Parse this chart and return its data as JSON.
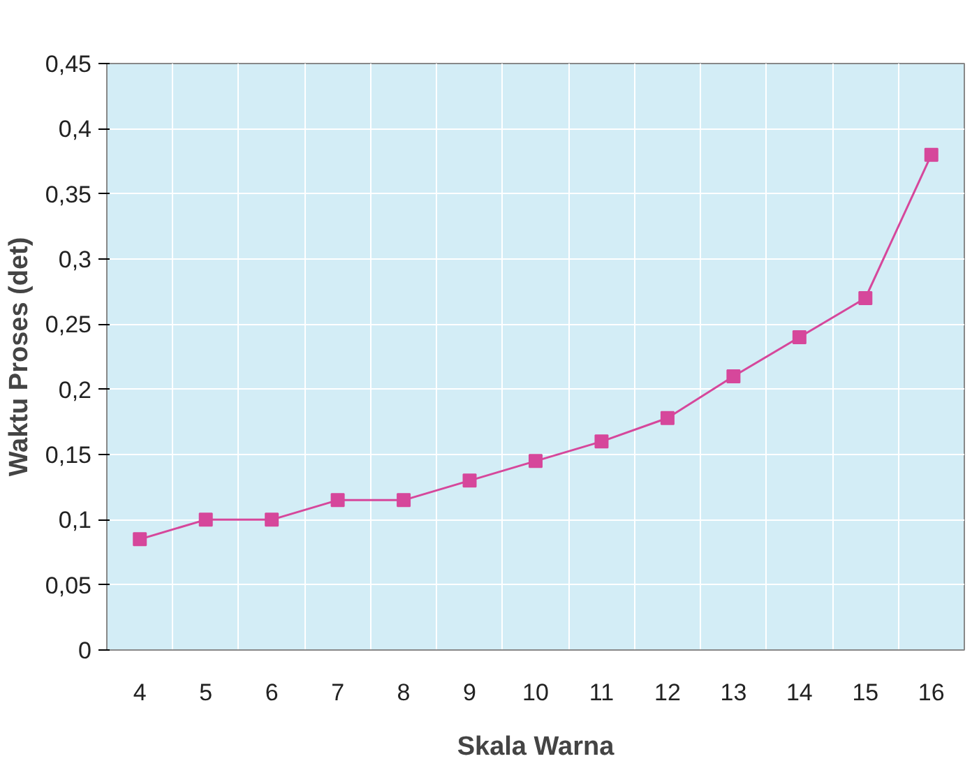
{
  "chart_data": {
    "type": "line",
    "xlabel": "Skala Warna",
    "ylabel": "Waktu Proses (det)",
    "categories": [
      "4",
      "5",
      "6",
      "7",
      "8",
      "9",
      "10",
      "11",
      "12",
      "13",
      "14",
      "15",
      "16"
    ],
    "series": [
      {
        "color": "#d6479b",
        "values": [
          0.085,
          0.1,
          0.1,
          0.115,
          0.115,
          0.13,
          0.145,
          0.16,
          0.178,
          0.21,
          0.24,
          0.27,
          0.38
        ]
      }
    ],
    "ylim": [
      0,
      0.45
    ],
    "yticks": [
      0,
      {
        "value": 0.05,
        "label": "0,05"
      },
      {
        "value": 0.1,
        "label": "0,1"
      },
      {
        "value": 0.15,
        "label": "0,15"
      },
      {
        "value": 0.2,
        "label": "0,2"
      },
      {
        "value": 0.25,
        "label": "0,25"
      },
      {
        "value": 0.3,
        "label": "0,3"
      },
      {
        "value": 0.35,
        "label": "0,35"
      },
      {
        "value": 0.4,
        "label": "0,4"
      },
      {
        "value": 0.45,
        "label": "0,45"
      }
    ],
    "grid": true,
    "marker": "square",
    "line_style": "solid"
  }
}
